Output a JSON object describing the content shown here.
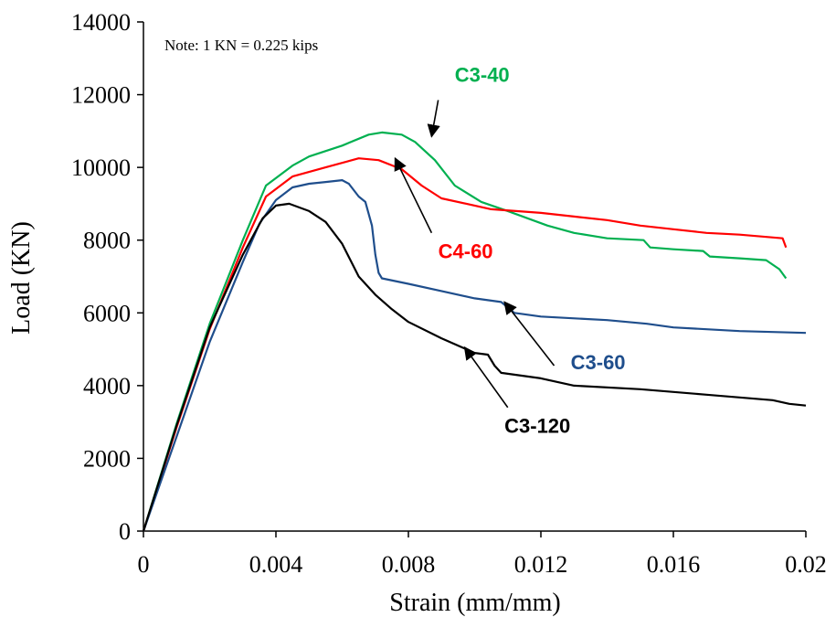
{
  "chart_data": {
    "type": "line",
    "xlabel": "Strain (mm/mm)",
    "ylabel": "Load (KN)",
    "xlim": [
      0,
      0.02
    ],
    "ylim": [
      0,
      14000
    ],
    "x_ticks": [
      "0",
      "0.004",
      "0.008",
      "0.012",
      "0.016",
      "0.02"
    ],
    "y_ticks": [
      "0",
      "2000",
      "4000",
      "6000",
      "8000",
      "10000",
      "12000",
      "14000"
    ],
    "annotation": "Note: 1 KN =  0.225 kips",
    "grid": false,
    "series": [
      {
        "name": "C3-40",
        "color": "#00b050",
        "points": [
          [
            0,
            0
          ],
          [
            0.001,
            2950
          ],
          [
            0.002,
            5700
          ],
          [
            0.003,
            8000
          ],
          [
            0.0037,
            9500
          ],
          [
            0.0045,
            10050
          ],
          [
            0.005,
            10300
          ],
          [
            0.006,
            10600
          ],
          [
            0.0068,
            10900
          ],
          [
            0.0072,
            10960
          ],
          [
            0.0078,
            10900
          ],
          [
            0.0082,
            10700
          ],
          [
            0.0088,
            10200
          ],
          [
            0.0094,
            9500
          ],
          [
            0.0102,
            9050
          ],
          [
            0.011,
            8800
          ],
          [
            0.0122,
            8400
          ],
          [
            0.013,
            8200
          ],
          [
            0.014,
            8050
          ],
          [
            0.0151,
            8000
          ],
          [
            0.0153,
            7800
          ],
          [
            0.016,
            7750
          ],
          [
            0.0169,
            7700
          ],
          [
            0.0171,
            7550
          ],
          [
            0.018,
            7500
          ],
          [
            0.0188,
            7450
          ],
          [
            0.0192,
            7200
          ],
          [
            0.0194,
            6950
          ]
        ]
      },
      {
        "name": "C4-60",
        "color": "#ff0000",
        "points": [
          [
            0,
            0
          ],
          [
            0.001,
            2850
          ],
          [
            0.002,
            5550
          ],
          [
            0.003,
            7800
          ],
          [
            0.0037,
            9200
          ],
          [
            0.0045,
            9750
          ],
          [
            0.0055,
            10000
          ],
          [
            0.0065,
            10250
          ],
          [
            0.0071,
            10200
          ],
          [
            0.0078,
            9950
          ],
          [
            0.0084,
            9500
          ],
          [
            0.009,
            9150
          ],
          [
            0.0105,
            8850
          ],
          [
            0.012,
            8750
          ],
          [
            0.013,
            8650
          ],
          [
            0.014,
            8550
          ],
          [
            0.015,
            8400
          ],
          [
            0.016,
            8300
          ],
          [
            0.017,
            8200
          ],
          [
            0.018,
            8150
          ],
          [
            0.0193,
            8050
          ],
          [
            0.0194,
            7800
          ]
        ]
      },
      {
        "name": "C3-60",
        "color": "#1f4e8c",
        "points": [
          [
            0,
            0
          ],
          [
            0.001,
            2600
          ],
          [
            0.002,
            5200
          ],
          [
            0.003,
            7400
          ],
          [
            0.0035,
            8450
          ],
          [
            0.004,
            9100
          ],
          [
            0.0045,
            9450
          ],
          [
            0.005,
            9550
          ],
          [
            0.0055,
            9600
          ],
          [
            0.006,
            9650
          ],
          [
            0.0062,
            9550
          ],
          [
            0.0065,
            9200
          ],
          [
            0.0067,
            9050
          ],
          [
            0.0069,
            8400
          ],
          [
            0.007,
            7600
          ],
          [
            0.0071,
            7100
          ],
          [
            0.0072,
            6950
          ],
          [
            0.008,
            6800
          ],
          [
            0.009,
            6600
          ],
          [
            0.01,
            6400
          ],
          [
            0.0108,
            6300
          ],
          [
            0.0112,
            6000
          ],
          [
            0.012,
            5900
          ],
          [
            0.014,
            5800
          ],
          [
            0.0152,
            5700
          ],
          [
            0.016,
            5600
          ],
          [
            0.018,
            5500
          ],
          [
            0.02,
            5450
          ]
        ]
      },
      {
        "name": "C3-120",
        "color": "#000000",
        "points": [
          [
            0,
            0
          ],
          [
            0.001,
            2900
          ],
          [
            0.002,
            5600
          ],
          [
            0.003,
            7600
          ],
          [
            0.0036,
            8600
          ],
          [
            0.004,
            8950
          ],
          [
            0.0044,
            9000
          ],
          [
            0.005,
            8800
          ],
          [
            0.0055,
            8500
          ],
          [
            0.006,
            7900
          ],
          [
            0.0065,
            7000
          ],
          [
            0.007,
            6500
          ],
          [
            0.0075,
            6100
          ],
          [
            0.008,
            5750
          ],
          [
            0.009,
            5300
          ],
          [
            0.01,
            4900
          ],
          [
            0.0104,
            4850
          ],
          [
            0.0106,
            4550
          ],
          [
            0.0108,
            4350
          ],
          [
            0.012,
            4200
          ],
          [
            0.013,
            4000
          ],
          [
            0.015,
            3900
          ],
          [
            0.017,
            3750
          ],
          [
            0.019,
            3600
          ],
          [
            0.0195,
            3500
          ],
          [
            0.02,
            3450
          ]
        ]
      }
    ],
    "arrows": [
      {
        "series": "C3-40",
        "label_at": [
          0.0094,
          12350
        ],
        "from": [
          0.0089,
          11850
        ],
        "to": [
          0.0087,
          10850
        ]
      },
      {
        "series": "C4-60",
        "label_at": [
          0.0089,
          7500
        ],
        "from": [
          0.0087,
          8200
        ],
        "to": [
          0.0076,
          10250
        ]
      },
      {
        "series": "C3-60",
        "label_at": [
          0.0129,
          4450
        ],
        "from": [
          0.0124,
          4550
        ],
        "to": [
          0.0109,
          6300
        ]
      },
      {
        "series": "C3-120",
        "label_at": [
          0.0109,
          2700
        ],
        "from": [
          0.011,
          3400
        ],
        "to": [
          0.0097,
          5050
        ]
      }
    ]
  }
}
